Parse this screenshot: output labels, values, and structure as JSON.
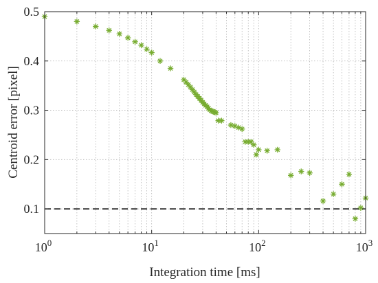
{
  "chart_data": {
    "type": "scatter",
    "xscale": "log",
    "xlim": [
      1,
      1000
    ],
    "ylim": [
      0.05,
      0.5
    ],
    "xlabel": "Integration time [ms]",
    "ylabel": "Centroid error [pixel]",
    "grid": true,
    "legend": "none",
    "x_ticks": [
      {
        "value": 1,
        "base": "10",
        "exp": "0"
      },
      {
        "value": 10,
        "base": "10",
        "exp": "1"
      },
      {
        "value": 100,
        "base": "10",
        "exp": "2"
      },
      {
        "value": 1000,
        "base": "10",
        "exp": "3"
      }
    ],
    "y_ticks": [
      {
        "value": 0.1,
        "label": "0.1"
      },
      {
        "value": 0.2,
        "label": "0.2"
      },
      {
        "value": 0.3,
        "label": "0.3"
      },
      {
        "value": 0.4,
        "label": "0.4"
      },
      {
        "value": 0.5,
        "label": "0.5"
      }
    ],
    "marker_color": "#77ac30",
    "reference_line": {
      "y": 0.1,
      "style": "dashed",
      "color": "#000000"
    },
    "series": [
      {
        "marker": "asterisk",
        "x": [
          1,
          2,
          3,
          4,
          5,
          6,
          7,
          8,
          9,
          10,
          12,
          15,
          20,
          21,
          22,
          23,
          24,
          25,
          26,
          27,
          28,
          29,
          30,
          31,
          32,
          33,
          34,
          35,
          36,
          37,
          38,
          39,
          40,
          42,
          45,
          55,
          60,
          65,
          70,
          75,
          80,
          85,
          90,
          95,
          100,
          120,
          150,
          200,
          250,
          300,
          400,
          500,
          600,
          700,
          800,
          900,
          1000
        ],
        "y": [
          0.49,
          0.48,
          0.47,
          0.462,
          0.455,
          0.447,
          0.439,
          0.432,
          0.424,
          0.417,
          0.4,
          0.385,
          0.362,
          0.357,
          0.352,
          0.347,
          0.342,
          0.337,
          0.332,
          0.328,
          0.324,
          0.32,
          0.316,
          0.313,
          0.31,
          0.307,
          0.304,
          0.301,
          0.299,
          0.298,
          0.297,
          0.296,
          0.295,
          0.279,
          0.279,
          0.27,
          0.268,
          0.265,
          0.262,
          0.236,
          0.236,
          0.236,
          0.23,
          0.21,
          0.22,
          0.218,
          0.22,
          0.168,
          0.176,
          0.173,
          0.116,
          0.13,
          0.15,
          0.17,
          0.08,
          0.102,
          0.122
        ]
      }
    ]
  }
}
